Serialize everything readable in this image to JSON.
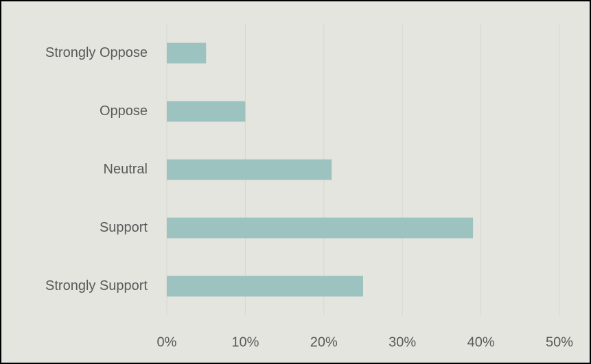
{
  "chart_data": {
    "type": "barh",
    "categories": [
      "Strongly Oppose",
      "Oppose",
      "Neutral",
      "Support",
      "Strongly Support"
    ],
    "values": [
      5,
      10,
      21,
      39,
      25
    ],
    "color": "#9dc3c1",
    "xlim": [
      0,
      50
    ],
    "xticks": [
      {
        "value": 0,
        "label": "0%"
      },
      {
        "value": 10,
        "label": "10%"
      },
      {
        "value": 20,
        "label": "20%"
      },
      {
        "value": 30,
        "label": "30%"
      },
      {
        "value": 40,
        "label": "40%"
      },
      {
        "value": 50,
        "label": "50%"
      }
    ],
    "grid": true
  }
}
